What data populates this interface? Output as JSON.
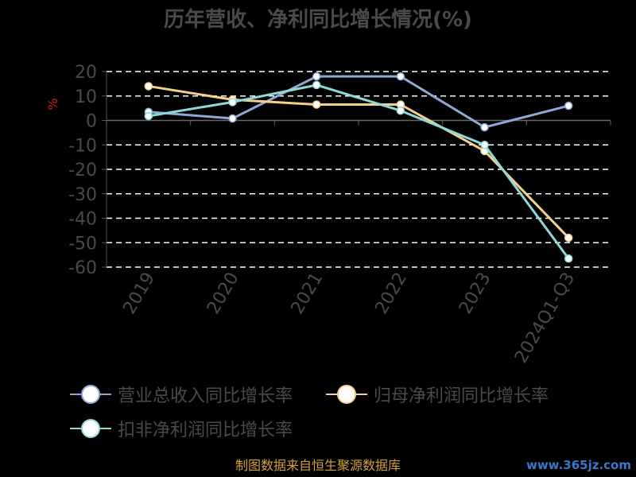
{
  "chart_data": {
    "type": "line",
    "title": "历年营收、净利同比增长情况(%)",
    "ylabel": "%",
    "categories": [
      "2019",
      "2020",
      "2021",
      "2022",
      "2023",
      "2024Q1-Q3"
    ],
    "ylim": [
      -60,
      20
    ],
    "yticks": [
      20,
      10,
      0,
      -10,
      -20,
      -30,
      -40,
      -50,
      -60
    ],
    "grid": true,
    "legend_position": "bottom",
    "series": [
      {
        "name": "营业总收入同比增长率",
        "color": "#8fa8d8",
        "values": [
          3.5,
          0.8,
          18.0,
          18.0,
          -2.8,
          6.0
        ]
      },
      {
        "name": "归母净利润同比增长率",
        "color": "#f5d08a",
        "values": [
          14.0,
          8.5,
          6.5,
          6.5,
          -12.5,
          -48.0
        ]
      },
      {
        "name": "扣非净利润同比增长率",
        "color": "#8fd8d8",
        "values": [
          1.8,
          7.5,
          14.5,
          4.0,
          -10.0,
          -56.5
        ]
      }
    ]
  },
  "footer": "制图数据来自恒生聚源数据库",
  "watermark": "www.365jz.com"
}
